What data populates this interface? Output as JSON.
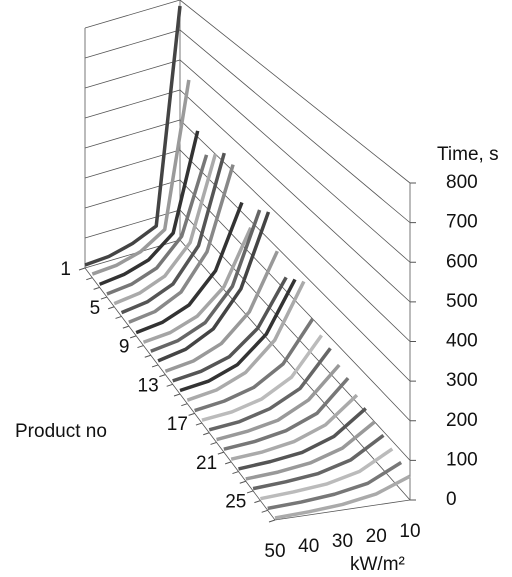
{
  "chart_data": {
    "type": "line3d",
    "y_label": "Time, s",
    "x_label": "kW/m²",
    "z_label": "Product no",
    "categories": [
      50,
      40,
      30,
      20,
      10
    ],
    "z_categories": [
      1,
      null,
      null,
      null,
      5,
      null,
      null,
      null,
      9,
      null,
      null,
      null,
      13,
      null,
      null,
      null,
      17,
      null,
      null,
      null,
      21,
      null,
      null,
      null,
      25,
      null,
      null
    ],
    "ylim": [
      0,
      800
    ],
    "yticks": [
      0,
      100,
      200,
      300,
      400,
      500,
      600,
      700,
      800
    ],
    "grid": true,
    "series": [
      {
        "color": "#444444",
        "values": [
          10,
          15,
          35,
          70,
          780
        ]
      },
      {
        "color": "#9a9a9a",
        "values": [
          12,
          18,
          40,
          90,
          560
        ]
      },
      {
        "color": "#333333",
        "values": [
          10,
          20,
          45,
          110,
          420
        ]
      },
      {
        "color": "#777777",
        "values": [
          10,
          20,
          50,
          130,
          370
        ]
      },
      {
        "color": "#aaaaaa",
        "values": [
          10,
          22,
          55,
          140,
          400
        ]
      },
      {
        "color": "#555555",
        "values": [
          12,
          25,
          60,
          160,
          430
        ]
      },
      {
        "color": "#888888",
        "values": [
          12,
          25,
          65,
          170,
          420
        ]
      },
      {
        "color": "#333333",
        "values": [
          10,
          22,
          55,
          140,
          330
        ]
      },
      {
        "color": "#a5a5a5",
        "values": [
          10,
          20,
          50,
          120,
          280
        ]
      },
      {
        "color": "#666666",
        "values": [
          12,
          25,
          60,
          150,
          360
        ]
      },
      {
        "color": "#444444",
        "values": [
          12,
          28,
          70,
          170,
          380
        ]
      },
      {
        "color": "#999999",
        "values": [
          10,
          22,
          55,
          130,
          290
        ]
      },
      {
        "color": "#555555",
        "values": [
          10,
          20,
          45,
          110,
          240
        ]
      },
      {
        "color": "#333333",
        "values": [
          10,
          20,
          50,
          120,
          260
        ]
      },
      {
        "color": "#aaaaaa",
        "values": [
          10,
          22,
          55,
          130,
          280
        ]
      },
      {
        "color": "#777777",
        "values": [
          8,
          18,
          40,
          90,
          200
        ]
      },
      {
        "color": "#bbbbbb",
        "values": [
          8,
          15,
          35,
          80,
          180
        ]
      },
      {
        "color": "#666666",
        "values": [
          8,
          15,
          35,
          75,
          170
        ]
      },
      {
        "color": "#999999",
        "values": [
          8,
          15,
          30,
          70,
          150
        ]
      },
      {
        "color": "#777777",
        "values": [
          8,
          14,
          28,
          60,
          140
        ]
      },
      {
        "color": "#aaaaaa",
        "values": [
          7,
          12,
          25,
          55,
          120
        ]
      },
      {
        "color": "#555555",
        "values": [
          7,
          12,
          22,
          50,
          110
        ]
      },
      {
        "color": "#999999",
        "values": [
          6,
          10,
          20,
          45,
          100
        ]
      },
      {
        "color": "#666666",
        "values": [
          6,
          10,
          18,
          40,
          90
        ]
      },
      {
        "color": "#bbbbbb",
        "values": [
          5,
          9,
          16,
          35,
          80
        ]
      },
      {
        "color": "#777777",
        "values": [
          5,
          8,
          15,
          30,
          70
        ]
      },
      {
        "color": "#aaaaaa",
        "values": [
          5,
          8,
          14,
          28,
          60
        ]
      }
    ]
  }
}
